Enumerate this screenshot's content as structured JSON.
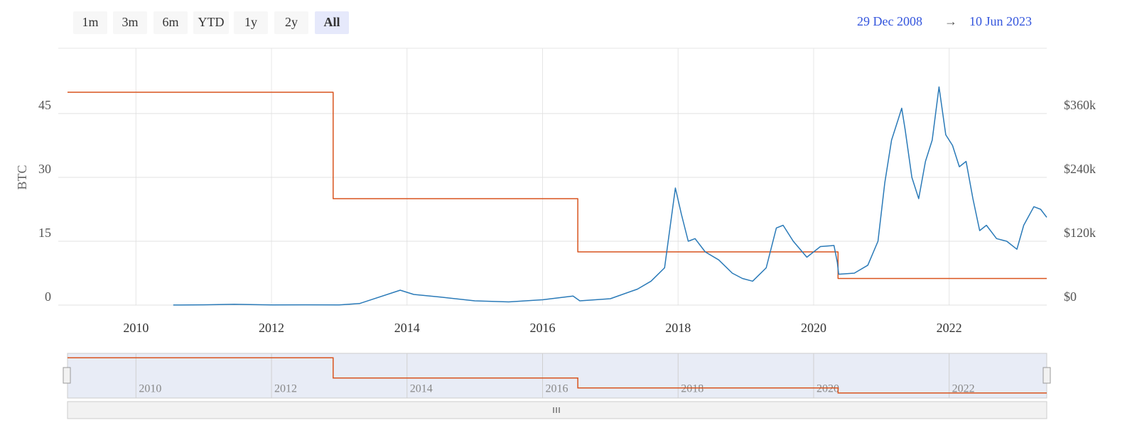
{
  "range_selector": {
    "buttons": [
      "1m",
      "3m",
      "6m",
      "YTD",
      "1y",
      "2y",
      "All"
    ],
    "selected": "All",
    "from": "29 Dec 2008",
    "arrow": "→",
    "to": "10 Jun 2023"
  },
  "chart_data": {
    "type": "line",
    "ylabel": "BTC",
    "xlim": [
      2008.99,
      2023.44
    ],
    "xticks": [
      2010,
      2012,
      2014,
      2016,
      2018,
      2020,
      2022
    ],
    "ylim": [
      0,
      60
    ],
    "yticks": [
      0,
      15,
      30,
      45
    ],
    "y2lim": [
      0,
      480000
    ],
    "y2ticks": [
      {
        "value": 0,
        "label": "$0"
      },
      {
        "value": 120000,
        "label": "$120k"
      },
      {
        "value": 240000,
        "label": "$240k"
      },
      {
        "value": 360000,
        "label": "$360k"
      }
    ],
    "grid": true,
    "series": [
      {
        "color": "#d9541e",
        "x": [
          2008.99,
          2012.91,
          2012.91,
          2016.52,
          2016.52,
          2020.36,
          2020.36,
          2023.44
        ],
        "values": [
          50,
          50,
          25,
          25,
          12.5,
          12.5,
          6.25,
          6.25
        ]
      },
      {
        "color": "#2a7ab8",
        "axis": "y2",
        "x": [
          2010.55,
          2011.0,
          2011.45,
          2012.0,
          2012.5,
          2013.0,
          2013.3,
          2013.9,
          2014.1,
          2014.5,
          2015.0,
          2015.5,
          2016.0,
          2016.45,
          2016.55,
          2017.0,
          2017.4,
          2017.6,
          2017.8,
          2017.96,
          2018.05,
          2018.15,
          2018.25,
          2018.4,
          2018.6,
          2018.8,
          2018.95,
          2019.1,
          2019.3,
          2019.45,
          2019.55,
          2019.7,
          2019.9,
          2020.1,
          2020.3,
          2020.35,
          2020.37,
          2020.6,
          2020.8,
          2020.95,
          2021.05,
          2021.15,
          2021.25,
          2021.3,
          2021.35,
          2021.45,
          2021.55,
          2021.65,
          2021.75,
          2021.85,
          2021.95,
          2022.05,
          2022.15,
          2022.25,
          2022.35,
          2022.45,
          2022.55,
          2022.7,
          2022.85,
          2023.0,
          2023.1,
          2023.25,
          2023.35,
          2023.44
        ],
        "values": [
          200,
          500,
          1500,
          300,
          600,
          400,
          3000,
          28000,
          20000,
          15000,
          8000,
          6000,
          10000,
          17000,
          8000,
          12000,
          30000,
          45000,
          70000,
          220000,
          170000,
          120000,
          125000,
          100000,
          85000,
          60000,
          50000,
          45000,
          70000,
          145000,
          150000,
          120000,
          90000,
          110000,
          112000,
          80000,
          58000,
          60000,
          75000,
          120000,
          230000,
          310000,
          350000,
          370000,
          330000,
          240000,
          200000,
          270000,
          310000,
          410000,
          320000,
          300000,
          260000,
          270000,
          200000,
          140000,
          150000,
          125000,
          120000,
          105000,
          150000,
          185000,
          180000,
          165000
        ]
      }
    ]
  }
}
